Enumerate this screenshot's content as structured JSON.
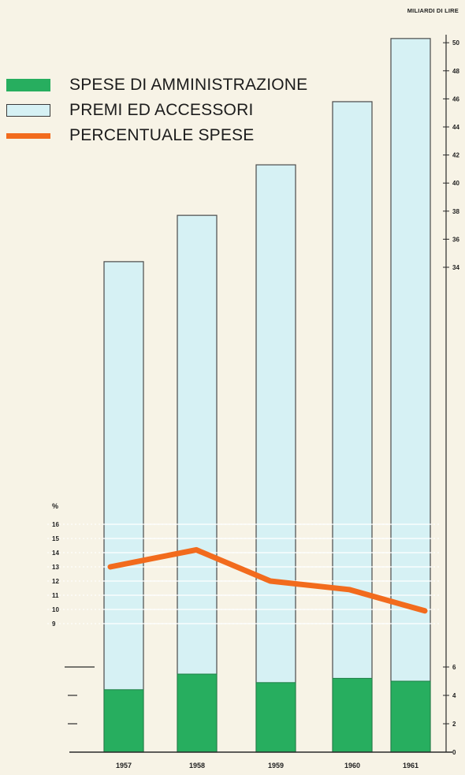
{
  "chart_data": {
    "type": "bar",
    "categories": [
      "1957",
      "1958",
      "1959",
      "1960",
      "1961"
    ],
    "series": [
      {
        "name": "PREMI ED ACCESSORI",
        "kind": "bar",
        "axis": "right",
        "color": "#d6f1f4",
        "values": [
          34.4,
          37.7,
          41.3,
          45.8,
          50.3
        ]
      },
      {
        "name": "SPESE DI AMMINISTRAZIONE",
        "kind": "bar",
        "axis": "right",
        "color": "#27ae5f",
        "values": [
          4.4,
          5.5,
          4.9,
          5.2,
          5.0
        ]
      },
      {
        "name": "PERCENTUALE SPESE",
        "kind": "line",
        "axis": "left",
        "color": "#f26b1d",
        "values": [
          13.0,
          14.2,
          12.0,
          11.4,
          9.9
        ]
      }
    ],
    "y_right": {
      "label": "MILIARDI DI LIRE",
      "ticks_low": [
        "0",
        "2",
        "4",
        "6"
      ],
      "ticks_high": [
        "34",
        "36",
        "38",
        "40",
        "42",
        "44",
        "46",
        "48",
        "50"
      ]
    },
    "y_left": {
      "label": "%",
      "ticks": [
        "16",
        "15",
        "14",
        "13",
        "12",
        "11",
        "10",
        "9"
      ]
    },
    "legend": {
      "position": "top-left",
      "items": [
        {
          "label": "SPESE DI AMMINISTRAZIONE",
          "style": "admin"
        },
        {
          "label": "PREMI ED ACCESSORI",
          "style": "premi"
        },
        {
          "label": "PERCENTUALE SPESE",
          "style": "perc"
        }
      ]
    }
  }
}
